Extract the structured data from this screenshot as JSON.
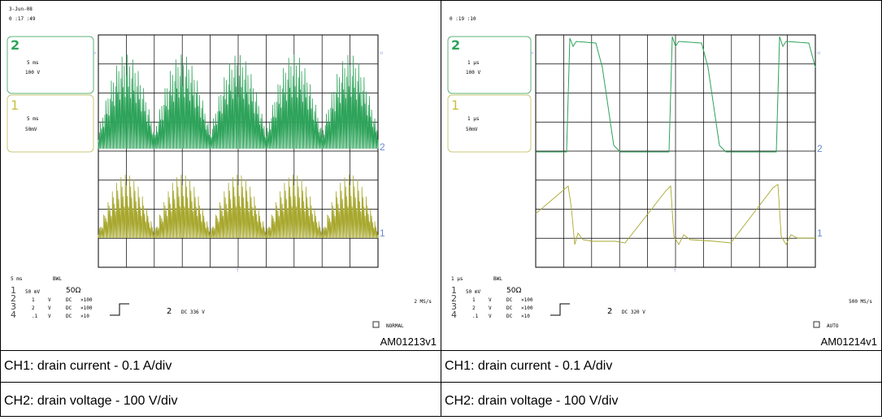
{
  "panels": [
    {
      "date": "3-Jun-08",
      "time": "0 :17  :49",
      "ch2": {
        "num": "2",
        "timebase": "5 ms",
        "volts": "100 V"
      },
      "ch1": {
        "num": "1",
        "timebase": "5 ms",
        "volts": "50mV"
      },
      "footer": {
        "timebase": "5 ms",
        "bwl": "BWL",
        "ch1_row": [
          "1",
          "50 mV",
          "50Ω"
        ],
        "ch2_row": [
          "2",
          "1",
          "V",
          "DC",
          "×100"
        ],
        "ch3_row": [
          "3",
          "2",
          "V",
          "DC",
          "×100"
        ],
        "ch4_row": [
          "4",
          ".1",
          "V",
          "DC",
          "×10"
        ],
        "trigger_ch": "2",
        "trigger_level": "DC 336 V",
        "sample_rate": "2 MS/s",
        "mode": "NORMAL"
      },
      "tag": "AM01213v1",
      "trace_colors": {
        "ch2": "#2ea35a",
        "ch1": "#a8a830"
      }
    },
    {
      "date": "",
      "time": "0 :19  :10",
      "ch2": {
        "num": "2",
        "timebase": "1  μs",
        "volts": "100 V"
      },
      "ch1": {
        "num": "1",
        "timebase": "1  μs",
        "volts": "50mV"
      },
      "footer": {
        "timebase": "1  μs",
        "bwl": "BWL",
        "ch1_row": [
          "1",
          "50 mV",
          "50Ω"
        ],
        "ch2_row": [
          "2",
          "1",
          "V",
          "DC",
          "×100"
        ],
        "ch3_row": [
          "3",
          "2",
          "V",
          "DC",
          "×100"
        ],
        "ch4_row": [
          "4",
          ".1",
          "V",
          "DC",
          "×10"
        ],
        "trigger_ch": "2",
        "trigger_level": "DC 320 V",
        "sample_rate": "500 MS/s",
        "mode": "AUTO"
      },
      "tag": "AM01214v1",
      "trace_colors": {
        "ch2": "#2ea35a",
        "ch1": "#a8a830"
      }
    }
  ],
  "captions": {
    "left_1": "CH1: drain current - 0.1 A/div",
    "right_1": "CH1: drain current - 0.1 A/div",
    "left_2": "CH2: drain voltage - 100 V/div",
    "right_2": "CH2: drain voltage - 100 V/div"
  }
}
